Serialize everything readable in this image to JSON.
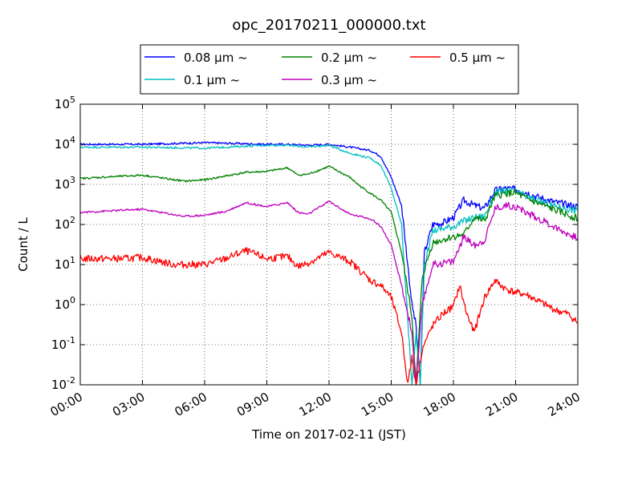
{
  "chart_data": {
    "type": "line",
    "title": "opc_20170211_000000.txt",
    "xlabel": "Time on 2017-02-11 (JST)",
    "ylabel": "Count / L",
    "x_unit": "hours",
    "xlim": [
      0,
      24
    ],
    "ylim": [
      0.01,
      100000
    ],
    "yscale": "log",
    "grid": true,
    "grid_style": "dotted",
    "legend_position": "top-center",
    "x_tick_labels": [
      "00:00",
      "03:00",
      "06:00",
      "09:00",
      "12:00",
      "15:00",
      "18:00",
      "21:00",
      "24:00"
    ],
    "y_tick_labels": [
      {
        "base": "10",
        "exp": "-2"
      },
      {
        "base": "10",
        "exp": "-1"
      },
      {
        "base": "10",
        "exp": "0"
      },
      {
        "base": "10",
        "exp": "1"
      },
      {
        "base": "10",
        "exp": "2"
      },
      {
        "base": "10",
        "exp": "3"
      },
      {
        "base": "10",
        "exp": "4"
      },
      {
        "base": "10",
        "exp": "5"
      }
    ],
    "series": [
      {
        "name": "0.08 μm ~",
        "color": "#0000ff",
        "points": [
          [
            0,
            10000
          ],
          [
            3,
            10000
          ],
          [
            6,
            11000
          ],
          [
            9,
            10000
          ],
          [
            10,
            10000
          ],
          [
            11,
            9500
          ],
          [
            12,
            10000
          ],
          [
            13,
            8500
          ],
          [
            14,
            7000
          ],
          [
            14.5,
            5000
          ],
          [
            15,
            1500
          ],
          [
            15.5,
            300
          ],
          [
            16,
            1
          ],
          [
            16.2,
            0.3
          ],
          [
            16.4,
            0.01
          ],
          [
            16.6,
            20
          ],
          [
            17,
            100
          ],
          [
            17.5,
            110
          ],
          [
            18,
            150
          ],
          [
            18.5,
            400
          ],
          [
            19,
            300
          ],
          [
            19.5,
            250
          ],
          [
            20,
            700
          ],
          [
            20.5,
            800
          ],
          [
            21,
            750
          ],
          [
            21.5,
            650
          ],
          [
            22,
            500
          ],
          [
            23,
            350
          ],
          [
            24,
            280
          ]
        ]
      },
      {
        "name": "0.1 μm ~",
        "color": "#00bfbf",
        "points": [
          [
            0,
            8500
          ],
          [
            3,
            8500
          ],
          [
            6,
            8000
          ],
          [
            9,
            9500
          ],
          [
            10,
            9500
          ],
          [
            11,
            8500
          ],
          [
            12,
            9500
          ],
          [
            13,
            6000
          ],
          [
            14,
            4500
          ],
          [
            14.5,
            3000
          ],
          [
            15,
            800
          ],
          [
            15.5,
            100
          ],
          [
            16,
            0.01
          ],
          [
            16.2,
            0.2
          ],
          [
            16.4,
            0.01
          ],
          [
            16.6,
            10
          ],
          [
            17,
            70
          ],
          [
            17.5,
            80
          ],
          [
            18,
            90
          ],
          [
            18.5,
            120
          ],
          [
            19,
            150
          ],
          [
            19.5,
            160
          ],
          [
            20,
            600
          ],
          [
            20.5,
            700
          ],
          [
            21,
            650
          ],
          [
            21.5,
            500
          ],
          [
            22,
            400
          ],
          [
            23,
            280
          ],
          [
            24,
            220
          ]
        ]
      },
      {
        "name": "0.2 μm ~",
        "color": "#008000",
        "points": [
          [
            0,
            1400
          ],
          [
            1,
            1500
          ],
          [
            3,
            1700
          ],
          [
            5,
            1200
          ],
          [
            6,
            1300
          ],
          [
            8,
            2000
          ],
          [
            9,
            2100
          ],
          [
            10,
            2600
          ],
          [
            10.5,
            1700
          ],
          [
            11,
            1800
          ],
          [
            12,
            2800
          ],
          [
            13,
            1500
          ],
          [
            13.5,
            900
          ],
          [
            14,
            600
          ],
          [
            14.5,
            400
          ],
          [
            15,
            200
          ],
          [
            15.5,
            20
          ],
          [
            16,
            0.5
          ],
          [
            16.2,
            0.01
          ],
          [
            16.5,
            5
          ],
          [
            17,
            35
          ],
          [
            18,
            50
          ],
          [
            18.5,
            55
          ],
          [
            19,
            150
          ],
          [
            19.5,
            120
          ],
          [
            20,
            500
          ],
          [
            20.5,
            600
          ],
          [
            21,
            600
          ],
          [
            21.5,
            450
          ],
          [
            22,
            350
          ],
          [
            23,
            220
          ],
          [
            24,
            140
          ]
        ]
      },
      {
        "name": "0.3 μm ~",
        "color": "#bf00bf",
        "points": [
          [
            0,
            200
          ],
          [
            3,
            240
          ],
          [
            5,
            160
          ],
          [
            6,
            170
          ],
          [
            7,
            210
          ],
          [
            8,
            350
          ],
          [
            9,
            280
          ],
          [
            10,
            350
          ],
          [
            10.5,
            200
          ],
          [
            11,
            180
          ],
          [
            12,
            380
          ],
          [
            13,
            180
          ],
          [
            14,
            140
          ],
          [
            14.5,
            90
          ],
          [
            15,
            30
          ],
          [
            15.5,
            3
          ],
          [
            16,
            0.2
          ],
          [
            16.2,
            0.01
          ],
          [
            16.5,
            1
          ],
          [
            17,
            10
          ],
          [
            18,
            12
          ],
          [
            18.5,
            50
          ],
          [
            19,
            30
          ],
          [
            19.5,
            40
          ],
          [
            20,
            250
          ],
          [
            20.5,
            300
          ],
          [
            21,
            280
          ],
          [
            21.5,
            200
          ],
          [
            22,
            150
          ],
          [
            23,
            80
          ],
          [
            24,
            45
          ]
        ]
      },
      {
        "name": "0.5 μm ~",
        "color": "#ff0000",
        "points": [
          [
            0,
            14
          ],
          [
            2,
            14
          ],
          [
            3,
            15
          ],
          [
            4.5,
            10
          ],
          [
            6,
            10
          ],
          [
            7,
            14
          ],
          [
            7.5,
            18
          ],
          [
            8,
            22
          ],
          [
            9,
            14
          ],
          [
            10,
            16
          ],
          [
            10.5,
            9
          ],
          [
            11,
            11
          ],
          [
            12,
            20
          ],
          [
            13,
            12
          ],
          [
            13.5,
            7
          ],
          [
            14,
            4
          ],
          [
            14.5,
            3
          ],
          [
            15,
            1.5
          ],
          [
            15.5,
            0.2
          ],
          [
            15.8,
            0.01
          ],
          [
            16,
            0.05
          ],
          [
            16.2,
            0.01
          ],
          [
            16.5,
            0.08
          ],
          [
            17,
            0.3
          ],
          [
            17.5,
            0.6
          ],
          [
            18,
            0.9
          ],
          [
            18.3,
            3
          ],
          [
            18.6,
            0.7
          ],
          [
            19,
            0.2
          ],
          [
            19.5,
            1.5
          ],
          [
            20,
            4
          ],
          [
            20.5,
            2.5
          ],
          [
            21,
            2
          ],
          [
            21.5,
            1.8
          ],
          [
            22,
            1.3
          ],
          [
            23,
            0.7
          ],
          [
            23.5,
            0.6
          ],
          [
            24,
            0.35
          ]
        ]
      }
    ]
  }
}
